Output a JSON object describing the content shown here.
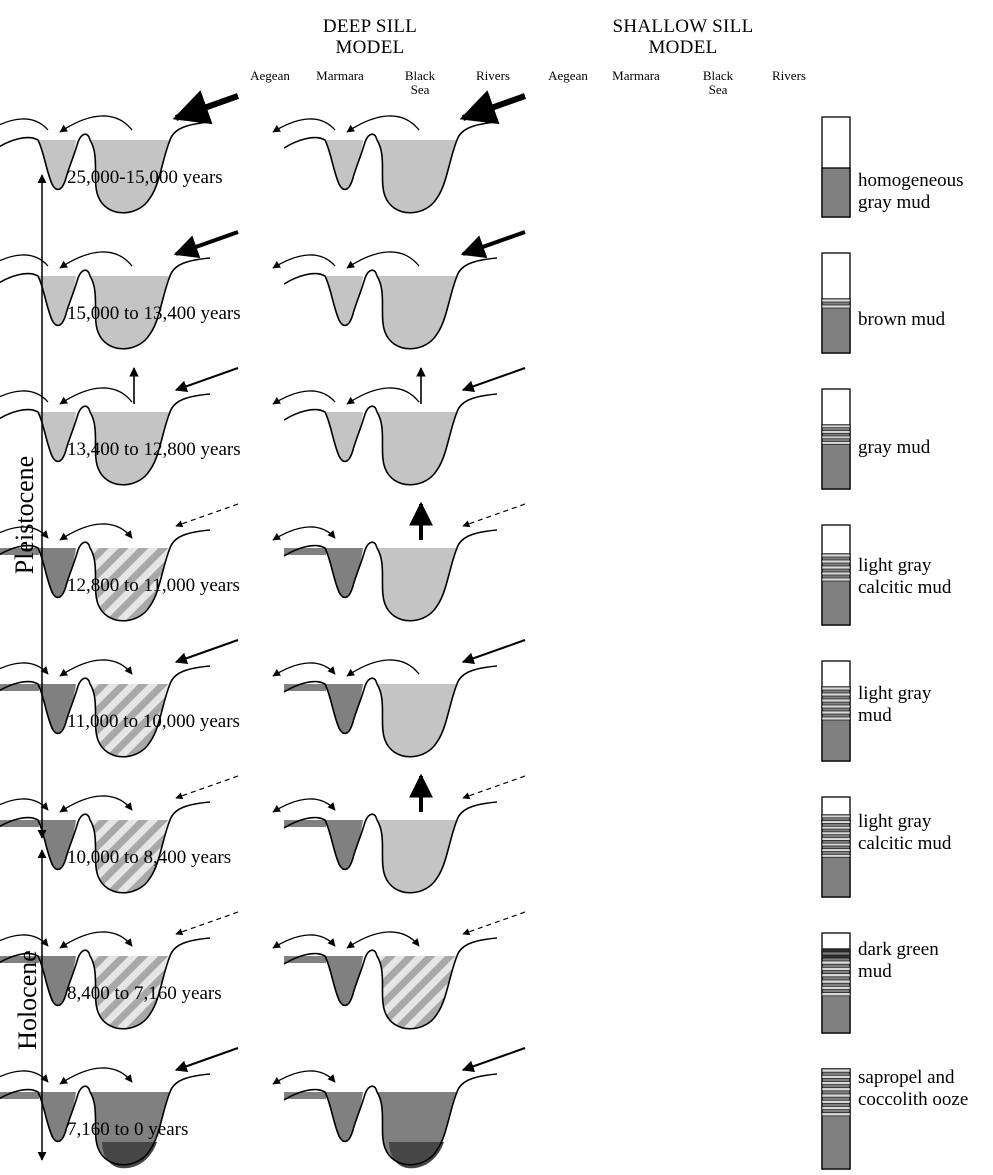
{
  "headers": {
    "deep": {
      "line1": "DEEP SILL",
      "line2": "MODEL"
    },
    "shallow": {
      "line1": "SHALLOW SILL",
      "line2": "MODEL"
    }
  },
  "regions": {
    "aegean": "Aegean",
    "marmara": "Marmara",
    "black_sea_1": "Black",
    "black_sea_2": "Sea",
    "rivers": "Rivers"
  },
  "epochs": {
    "pleistocene": "Pleistocene",
    "holocene": "Holocene"
  },
  "stages": [
    {
      "age": "25,000-15,000 years",
      "sediment": [
        "homogeneous",
        "gray mud"
      ],
      "deep": {
        "marmara": "light",
        "black": "light",
        "mb_arrow": "left",
        "am_arrow": "left",
        "river": "heavy",
        "up": "none"
      },
      "shallow": {
        "marmara": "light",
        "black": "light",
        "mb_arrow": "left",
        "am_arrow": "left",
        "river": "heavy",
        "up": "none"
      }
    },
    {
      "age": "15,000 to 13,400 years",
      "sediment": [
        "brown mud"
      ],
      "deep": {
        "marmara": "light",
        "black": "light",
        "mb_arrow": "left",
        "am_arrow": "left",
        "river": "medium",
        "up": "none"
      },
      "shallow": {
        "marmara": "light",
        "black": "light",
        "mb_arrow": "left",
        "am_arrow": "left",
        "river": "medium",
        "up": "none"
      }
    },
    {
      "age": "13,400 to 12,800 years",
      "sediment": [
        "gray mud"
      ],
      "deep": {
        "marmara": "light",
        "black": "light",
        "mb_arrow": "left",
        "am_arrow": "left",
        "river": "thin",
        "up": "thin"
      },
      "shallow": {
        "marmara": "light",
        "black": "light",
        "mb_arrow": "left",
        "am_arrow": "left",
        "river": "thin",
        "up": "thin"
      }
    },
    {
      "age": "12,800 to 11,000 years",
      "sediment": [
        "light gray",
        "calcitic mud"
      ],
      "deep": {
        "marmara": "dark",
        "black": "hatched",
        "mb_arrow": "both",
        "am_arrow": "both",
        "river": "dashed",
        "up": "none"
      },
      "shallow": {
        "marmara": "dark",
        "black": "light",
        "mb_arrow": "none",
        "am_arrow": "both",
        "river": "dashed",
        "up": "thick"
      }
    },
    {
      "age": "11,000 to 10,000 years",
      "sediment": [
        "light gray",
        "mud"
      ],
      "deep": {
        "marmara": "dark",
        "black": "hatched",
        "mb_arrow": "both",
        "am_arrow": "both",
        "river": "thin",
        "up": "none"
      },
      "shallow": {
        "marmara": "dark",
        "black": "light",
        "mb_arrow": "left",
        "am_arrow": "both",
        "river": "thin",
        "up": "none"
      }
    },
    {
      "age": "10,000 to 8,400 years",
      "sediment": [
        "light gray",
        "calcitic mud"
      ],
      "deep": {
        "marmara": "dark",
        "black": "hatched",
        "mb_arrow": "both",
        "am_arrow": "both",
        "river": "dashed",
        "up": "none"
      },
      "shallow": {
        "marmara": "dark",
        "black": "light",
        "mb_arrow": "none",
        "am_arrow": "both",
        "river": "dashed",
        "up": "thick"
      }
    },
    {
      "age": "8,400 to 7,160 years",
      "sediment": [
        "dark green",
        "mud"
      ],
      "deep": {
        "marmara": "dark",
        "black": "hatched",
        "mb_arrow": "both",
        "am_arrow": "both",
        "river": "dashed",
        "up": "none"
      },
      "shallow": {
        "marmara": "dark",
        "black": "hatched",
        "mb_arrow": "both",
        "am_arrow": "both",
        "river": "dashed",
        "up": "none"
      }
    },
    {
      "age": "7,160 to 0 years",
      "sediment": [
        "sapropel and",
        "coccolith ooze"
      ],
      "deep": {
        "marmara": "dark",
        "black": "layered",
        "mb_arrow": "both",
        "am_arrow": "both",
        "river": "thin",
        "up": "none"
      },
      "shallow": {
        "marmara": "dark",
        "black": "layered",
        "mb_arrow": "none",
        "am_arrow": "both",
        "river": "thin",
        "up": "none"
      }
    }
  ],
  "sediment_column": [
    {
      "fill_from_top": 0.51,
      "bands": []
    },
    {
      "fill_from_top": 0.46,
      "bands": [
        {
          "color": "light",
          "thickness": 0.12
        }
      ]
    },
    {
      "fill_from_top": 0.36,
      "bands": [
        {
          "color": "light",
          "thickness": 0.22
        }
      ]
    },
    {
      "fill_from_top": 0.29,
      "bands": [
        {
          "color": "light",
          "thickness": 0.3
        }
      ]
    },
    {
      "fill_from_top": 0.26,
      "bands": [
        {
          "color": "light",
          "thickness": 0.36
        }
      ]
    },
    {
      "fill_from_top": 0.18,
      "bands": [
        {
          "color": "light",
          "thickness": 0.45
        }
      ]
    },
    {
      "fill_from_top": 0.16,
      "bands": [
        {
          "color": "dark",
          "thickness": 0.12
        },
        {
          "color": "light",
          "thickness": 0.38
        }
      ]
    },
    {
      "fill_from_top": 0.0,
      "bands": [
        {
          "color": "light",
          "thickness": 0.5
        }
      ]
    }
  ],
  "colors": {
    "light": "#c4c4c4",
    "dark": "#808080",
    "deep_black": "#464646",
    "line": "#000000",
    "hatch": "#a8a8a8"
  }
}
